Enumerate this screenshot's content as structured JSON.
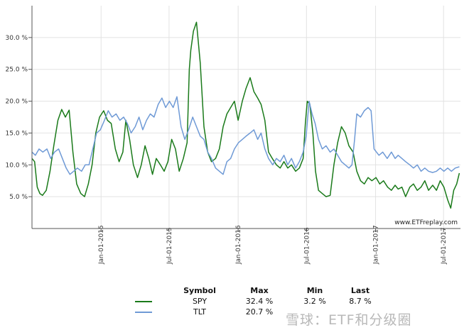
{
  "chart_data": {
    "type": "line",
    "y_ticks": [
      "30.0 %",
      "25.0 %",
      "20.0 %",
      "15.0 %",
      "10.0 %",
      "5.0 %"
    ],
    "y_tick_values": [
      30,
      25,
      20,
      15,
      10,
      5
    ],
    "ylim": [
      0,
      35
    ],
    "x_ticks": [
      "Jan-01-2015",
      "Jul-01-2015",
      "Jan-01-2016",
      "Jul-01-2016",
      "Jan-01-2017",
      "Jul-01-2017"
    ],
    "x_tick_values": [
      "2015-01-01",
      "2015-07-01",
      "2016-01-01",
      "2016-07-01",
      "2017-01-01",
      "2017-07-01"
    ],
    "xlim": [
      "2014-07-01",
      "2017-08-15"
    ],
    "grid": true,
    "credit": "www.ETFreplay.com",
    "series": [
      {
        "name": "SPY",
        "color": "#1a7a1a",
        "points": [
          [
            "2014-07-01",
            11
          ],
          [
            "2014-07-08",
            10.5
          ],
          [
            "2014-07-15",
            6.5
          ],
          [
            "2014-07-22",
            5.5
          ],
          [
            "2014-07-29",
            5.2
          ],
          [
            "2014-08-08",
            6.0
          ],
          [
            "2014-08-18",
            9.0
          ],
          [
            "2014-08-28",
            13.0
          ],
          [
            "2014-09-08",
            17.0
          ],
          [
            "2014-09-18",
            18.7
          ],
          [
            "2014-09-28",
            17.5
          ],
          [
            "2014-10-08",
            18.6
          ],
          [
            "2014-10-18",
            12.0
          ],
          [
            "2014-10-28",
            7.0
          ],
          [
            "2014-11-08",
            5.5
          ],
          [
            "2014-11-18",
            5.0
          ],
          [
            "2014-11-28",
            7.0
          ],
          [
            "2014-12-08",
            10.0
          ],
          [
            "2014-12-18",
            15.0
          ],
          [
            "2014-12-28",
            17.5
          ],
          [
            "2015-01-08",
            18.5
          ],
          [
            "2015-01-18",
            17.0
          ],
          [
            "2015-01-28",
            16.5
          ],
          [
            "2015-02-08",
            12.5
          ],
          [
            "2015-02-18",
            10.5
          ],
          [
            "2015-02-28",
            12.0
          ],
          [
            "2015-03-08",
            17.0
          ],
          [
            "2015-03-18",
            14.0
          ],
          [
            "2015-03-28",
            10.0
          ],
          [
            "2015-04-08",
            8.0
          ],
          [
            "2015-04-18",
            10.0
          ],
          [
            "2015-04-28",
            13.0
          ],
          [
            "2015-05-08",
            11.0
          ],
          [
            "2015-05-18",
            8.5
          ],
          [
            "2015-05-28",
            11.0
          ],
          [
            "2015-06-08",
            10.0
          ],
          [
            "2015-06-18",
            9.0
          ],
          [
            "2015-06-28",
            10.5
          ],
          [
            "2015-07-08",
            14.0
          ],
          [
            "2015-07-18",
            12.5
          ],
          [
            "2015-07-28",
            9.0
          ],
          [
            "2015-08-08",
            11.0
          ],
          [
            "2015-08-18",
            13.5
          ],
          [
            "2015-08-24",
            25.0
          ],
          [
            "2015-08-28",
            28.0
          ],
          [
            "2015-09-04",
            31.0
          ],
          [
            "2015-09-12",
            32.4
          ],
          [
            "2015-09-22",
            26.0
          ],
          [
            "2015-10-02",
            16.0
          ],
          [
            "2015-10-12",
            12.0
          ],
          [
            "2015-10-22",
            10.5
          ],
          [
            "2015-11-02",
            11.0
          ],
          [
            "2015-11-12",
            12.5
          ],
          [
            "2015-11-22",
            16.0
          ],
          [
            "2015-12-02",
            18.0
          ],
          [
            "2015-12-12",
            19.0
          ],
          [
            "2015-12-22",
            20.0
          ],
          [
            "2016-01-01",
            17.0
          ],
          [
            "2016-01-12",
            20.0
          ],
          [
            "2016-01-22",
            22.0
          ],
          [
            "2016-02-02",
            23.7
          ],
          [
            "2016-02-12",
            21.5
          ],
          [
            "2016-02-22",
            20.5
          ],
          [
            "2016-03-02",
            19.5
          ],
          [
            "2016-03-12",
            17.0
          ],
          [
            "2016-03-22",
            12.0
          ],
          [
            "2016-04-01",
            11.0
          ],
          [
            "2016-04-12",
            10.0
          ],
          [
            "2016-04-22",
            9.5
          ],
          [
            "2016-05-02",
            10.5
          ],
          [
            "2016-05-12",
            9.5
          ],
          [
            "2016-05-22",
            10.0
          ],
          [
            "2016-06-02",
            9.0
          ],
          [
            "2016-06-12",
            9.5
          ],
          [
            "2016-06-22",
            11.0
          ],
          [
            "2016-06-28",
            16.5
          ],
          [
            "2016-07-03",
            20.0
          ],
          [
            "2016-07-10",
            19.5
          ],
          [
            "2016-07-18",
            15.0
          ],
          [
            "2016-07-25",
            9.0
          ],
          [
            "2016-08-02",
            6.0
          ],
          [
            "2016-08-12",
            5.5
          ],
          [
            "2016-08-22",
            5.0
          ],
          [
            "2016-09-02",
            5.2
          ],
          [
            "2016-09-12",
            10.0
          ],
          [
            "2016-09-22",
            13.5
          ],
          [
            "2016-10-02",
            16.0
          ],
          [
            "2016-10-12",
            15.0
          ],
          [
            "2016-10-22",
            13.0
          ],
          [
            "2016-11-02",
            12.0
          ],
          [
            "2016-11-12",
            9.0
          ],
          [
            "2016-11-22",
            7.5
          ],
          [
            "2016-12-02",
            7.0
          ],
          [
            "2016-12-12",
            8.0
          ],
          [
            "2016-12-22",
            7.5
          ],
          [
            "2017-01-02",
            8.0
          ],
          [
            "2017-01-12",
            7.0
          ],
          [
            "2017-01-22",
            7.5
          ],
          [
            "2017-02-02",
            6.5
          ],
          [
            "2017-02-12",
            6.0
          ],
          [
            "2017-02-22",
            6.8
          ],
          [
            "2017-03-02",
            6.2
          ],
          [
            "2017-03-12",
            6.5
          ],
          [
            "2017-03-22",
            5.0
          ],
          [
            "2017-04-02",
            6.5
          ],
          [
            "2017-04-12",
            7.0
          ],
          [
            "2017-04-22",
            6.0
          ],
          [
            "2017-05-02",
            6.5
          ],
          [
            "2017-05-12",
            7.5
          ],
          [
            "2017-05-22",
            6.0
          ],
          [
            "2017-06-02",
            6.8
          ],
          [
            "2017-06-12",
            6.0
          ],
          [
            "2017-06-22",
            7.5
          ],
          [
            "2017-07-02",
            6.5
          ],
          [
            "2017-07-12",
            4.5
          ],
          [
            "2017-07-20",
            3.2
          ],
          [
            "2017-07-28",
            6.0
          ],
          [
            "2017-08-05",
            7.0
          ],
          [
            "2017-08-12",
            8.7
          ]
        ]
      },
      {
        "name": "TLT",
        "color": "#6f9ad6",
        "points": [
          [
            "2014-07-01",
            12.0
          ],
          [
            "2014-07-10",
            11.5
          ],
          [
            "2014-07-20",
            12.5
          ],
          [
            "2014-07-30",
            12.0
          ],
          [
            "2014-08-10",
            12.5
          ],
          [
            "2014-08-20",
            11.0
          ],
          [
            "2014-08-30",
            12.0
          ],
          [
            "2014-09-10",
            12.5
          ],
          [
            "2014-09-20",
            11.0
          ],
          [
            "2014-09-30",
            9.5
          ],
          [
            "2014-10-10",
            8.5
          ],
          [
            "2014-10-20",
            9.0
          ],
          [
            "2014-10-30",
            9.5
          ],
          [
            "2014-11-10",
            9.0
          ],
          [
            "2014-11-20",
            10.0
          ],
          [
            "2014-11-30",
            10.0
          ],
          [
            "2014-12-10",
            12.5
          ],
          [
            "2014-12-20",
            15.0
          ],
          [
            "2014-12-30",
            15.5
          ],
          [
            "2015-01-10",
            17.0
          ],
          [
            "2015-01-20",
            18.5
          ],
          [
            "2015-01-30",
            17.5
          ],
          [
            "2015-02-10",
            18.0
          ],
          [
            "2015-02-20",
            17.0
          ],
          [
            "2015-03-02",
            17.5
          ],
          [
            "2015-03-12",
            16.5
          ],
          [
            "2015-03-22",
            15.0
          ],
          [
            "2015-04-02",
            16.0
          ],
          [
            "2015-04-12",
            17.5
          ],
          [
            "2015-04-22",
            15.5
          ],
          [
            "2015-05-02",
            17.0
          ],
          [
            "2015-05-12",
            18.0
          ],
          [
            "2015-05-22",
            17.5
          ],
          [
            "2015-06-02",
            19.5
          ],
          [
            "2015-06-12",
            20.5
          ],
          [
            "2015-06-22",
            19.0
          ],
          [
            "2015-07-02",
            20.0
          ],
          [
            "2015-07-12",
            19.0
          ],
          [
            "2015-07-22",
            20.7
          ],
          [
            "2015-08-02",
            16.0
          ],
          [
            "2015-08-12",
            14.0
          ],
          [
            "2015-08-22",
            15.5
          ],
          [
            "2015-09-02",
            17.5
          ],
          [
            "2015-09-12",
            16.0
          ],
          [
            "2015-09-22",
            14.5
          ],
          [
            "2015-10-02",
            14.0
          ],
          [
            "2015-10-12",
            12.0
          ],
          [
            "2015-10-22",
            11.0
          ],
          [
            "2015-11-02",
            9.5
          ],
          [
            "2015-11-12",
            9.0
          ],
          [
            "2015-11-22",
            8.5
          ],
          [
            "2015-12-02",
            10.5
          ],
          [
            "2015-12-12",
            11.0
          ],
          [
            "2015-12-22",
            12.5
          ],
          [
            "2016-01-02",
            13.5
          ],
          [
            "2016-01-12",
            14.0
          ],
          [
            "2016-01-22",
            14.5
          ],
          [
            "2016-02-02",
            15.0
          ],
          [
            "2016-02-12",
            15.5
          ],
          [
            "2016-02-22",
            14.0
          ],
          [
            "2016-03-02",
            15.0
          ],
          [
            "2016-03-12",
            12.5
          ],
          [
            "2016-03-22",
            11.0
          ],
          [
            "2016-04-02",
            10.0
          ],
          [
            "2016-04-12",
            11.0
          ],
          [
            "2016-04-22",
            10.5
          ],
          [
            "2016-05-02",
            11.5
          ],
          [
            "2016-05-12",
            10.0
          ],
          [
            "2016-05-22",
            11.0
          ],
          [
            "2016-06-02",
            9.5
          ],
          [
            "2016-06-12",
            10.5
          ],
          [
            "2016-06-22",
            12.0
          ],
          [
            "2016-06-30",
            14.5
          ],
          [
            "2016-07-08",
            20.0
          ],
          [
            "2016-07-16",
            18.0
          ],
          [
            "2016-07-24",
            16.5
          ],
          [
            "2016-08-02",
            14.0
          ],
          [
            "2016-08-12",
            12.5
          ],
          [
            "2016-08-22",
            13.0
          ],
          [
            "2016-09-02",
            12.0
          ],
          [
            "2016-09-12",
            12.5
          ],
          [
            "2016-09-22",
            11.5
          ],
          [
            "2016-10-02",
            10.5
          ],
          [
            "2016-10-12",
            10.0
          ],
          [
            "2016-10-22",
            9.5
          ],
          [
            "2016-10-30",
            10.0
          ],
          [
            "2016-11-06",
            14.0
          ],
          [
            "2016-11-12",
            18.0
          ],
          [
            "2016-11-22",
            17.5
          ],
          [
            "2016-12-02",
            18.5
          ],
          [
            "2016-12-12",
            19.0
          ],
          [
            "2016-12-20",
            18.5
          ],
          [
            "2016-12-28",
            12.5
          ],
          [
            "2017-01-10",
            11.5
          ],
          [
            "2017-01-20",
            12.0
          ],
          [
            "2017-02-01",
            11.0
          ],
          [
            "2017-02-12",
            12.0
          ],
          [
            "2017-02-22",
            11.0
          ],
          [
            "2017-03-02",
            11.5
          ],
          [
            "2017-03-12",
            11.0
          ],
          [
            "2017-03-22",
            10.5
          ],
          [
            "2017-04-02",
            10.0
          ],
          [
            "2017-04-12",
            9.5
          ],
          [
            "2017-04-22",
            10.0
          ],
          [
            "2017-05-02",
            9.0
          ],
          [
            "2017-05-12",
            9.5
          ],
          [
            "2017-05-22",
            9.0
          ],
          [
            "2017-06-02",
            8.8
          ],
          [
            "2017-06-12",
            9.0
          ],
          [
            "2017-06-22",
            9.5
          ],
          [
            "2017-07-02",
            9.0
          ],
          [
            "2017-07-12",
            9.5
          ],
          [
            "2017-07-22",
            9.0
          ],
          [
            "2017-08-01",
            9.5
          ],
          [
            "2017-08-12",
            9.7
          ]
        ]
      }
    ]
  },
  "legend": {
    "headers": {
      "symbol": "Symbol",
      "max": "Max",
      "min": "Min",
      "last": "Last"
    },
    "rows": [
      {
        "symbol": "SPY",
        "max": "32.4 %",
        "min": "3.2 %",
        "last": "8.7 %",
        "color": "#1a7a1a"
      },
      {
        "symbol": "TLT",
        "max": "20.7 %",
        "min": "",
        "last": "",
        "color": "#6f9ad6"
      }
    ]
  },
  "watermark": "雪球：ETF和分级圈"
}
